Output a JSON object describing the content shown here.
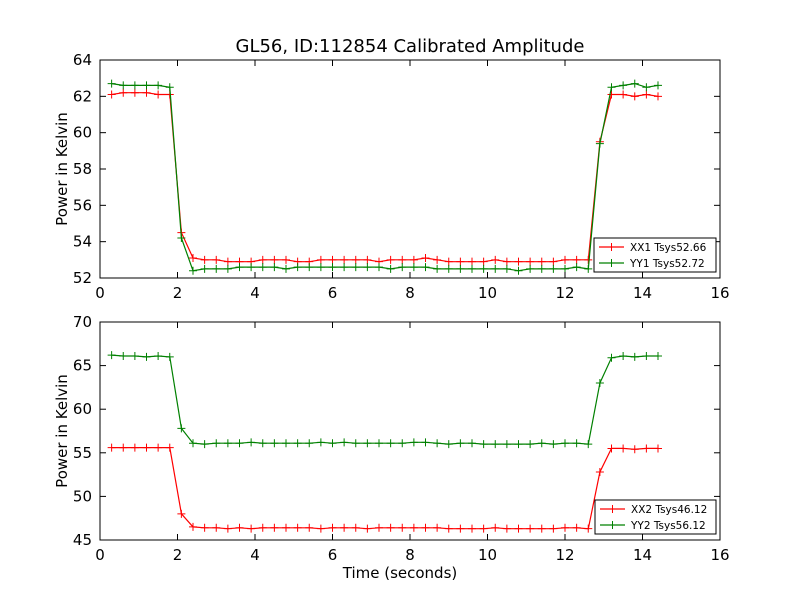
{
  "figure": {
    "title": "GL56, ID:112854 Calibrated Amplitude"
  },
  "chart_data": [
    {
      "type": "line",
      "title": "GL56, ID:112854 Calibrated Amplitude",
      "xlabel": "",
      "ylabel": "Power in Kelvin",
      "xlim": [
        0,
        16
      ],
      "ylim": [
        52,
        64
      ],
      "xticks": [
        "0",
        "2",
        "4",
        "6",
        "8",
        "10",
        "12",
        "14",
        "16"
      ],
      "yticks": [
        "52",
        "54",
        "56",
        "58",
        "60",
        "62",
        "64"
      ],
      "legend_position": "lower-right",
      "grid": false,
      "x": [
        0.3,
        0.6,
        0.9,
        1.2,
        1.5,
        1.8,
        2.1,
        2.4,
        2.7,
        3.0,
        3.3,
        3.6,
        3.9,
        4.2,
        4.5,
        4.8,
        5.1,
        5.4,
        5.7,
        6.0,
        6.3,
        6.6,
        6.9,
        7.2,
        7.5,
        7.8,
        8.1,
        8.4,
        8.7,
        9.0,
        9.3,
        9.6,
        9.9,
        10.2,
        10.5,
        10.8,
        11.1,
        11.4,
        11.7,
        12.0,
        12.3,
        12.6,
        12.9,
        13.2,
        13.5,
        13.8,
        14.1,
        14.4
      ],
      "series": [
        {
          "name": "XX1 Tsys52.66",
          "color": "#ff0000",
          "values": [
            62.1,
            62.2,
            62.2,
            62.2,
            62.1,
            62.1,
            54.5,
            53.1,
            53.0,
            53.0,
            52.9,
            52.9,
            52.9,
            53.0,
            53.0,
            53.0,
            52.9,
            52.9,
            53.0,
            53.0,
            53.0,
            53.0,
            53.0,
            52.9,
            53.0,
            53.0,
            53.0,
            53.1,
            53.0,
            52.9,
            52.9,
            52.9,
            52.9,
            53.0,
            52.9,
            52.9,
            52.9,
            52.9,
            52.9,
            53.0,
            53.0,
            53.0,
            59.5,
            62.1,
            62.1,
            62.0,
            62.1,
            62.0
          ]
        },
        {
          "name": "YY1 Tsys52.72",
          "color": "#008000",
          "values": [
            62.7,
            62.6,
            62.6,
            62.6,
            62.6,
            62.5,
            54.2,
            52.4,
            52.5,
            52.5,
            52.5,
            52.6,
            52.6,
            52.6,
            52.6,
            52.5,
            52.6,
            52.6,
            52.6,
            52.6,
            52.6,
            52.6,
            52.6,
            52.6,
            52.5,
            52.6,
            52.6,
            52.6,
            52.5,
            52.5,
            52.5,
            52.5,
            52.5,
            52.5,
            52.5,
            52.4,
            52.5,
            52.5,
            52.5,
            52.5,
            52.6,
            52.5,
            59.4,
            62.5,
            62.6,
            62.7,
            62.5,
            62.6
          ]
        }
      ]
    },
    {
      "type": "line",
      "title": "",
      "xlabel": "Time (seconds)",
      "ylabel": "Power in Kelvin",
      "xlim": [
        0,
        16
      ],
      "ylim": [
        45,
        70
      ],
      "xticks": [
        "0",
        "2",
        "4",
        "6",
        "8",
        "10",
        "12",
        "14",
        "16"
      ],
      "yticks": [
        "45",
        "50",
        "55",
        "60",
        "65",
        "70"
      ],
      "legend_position": "lower-right",
      "grid": false,
      "x": [
        0.3,
        0.6,
        0.9,
        1.2,
        1.5,
        1.8,
        2.1,
        2.4,
        2.7,
        3.0,
        3.3,
        3.6,
        3.9,
        4.2,
        4.5,
        4.8,
        5.1,
        5.4,
        5.7,
        6.0,
        6.3,
        6.6,
        6.9,
        7.2,
        7.5,
        7.8,
        8.1,
        8.4,
        8.7,
        9.0,
        9.3,
        9.6,
        9.9,
        10.2,
        10.5,
        10.8,
        11.1,
        11.4,
        11.7,
        12.0,
        12.3,
        12.6,
        12.9,
        13.2,
        13.5,
        13.8,
        14.1,
        14.4
      ],
      "series": [
        {
          "name": "XX2 Tsys46.12",
          "color": "#ff0000",
          "values": [
            55.6,
            55.6,
            55.6,
            55.6,
            55.6,
            55.6,
            48.0,
            46.5,
            46.4,
            46.4,
            46.3,
            46.4,
            46.3,
            46.4,
            46.4,
            46.4,
            46.4,
            46.4,
            46.3,
            46.4,
            46.4,
            46.4,
            46.3,
            46.4,
            46.4,
            46.4,
            46.4,
            46.4,
            46.4,
            46.3,
            46.3,
            46.3,
            46.3,
            46.4,
            46.3,
            46.3,
            46.3,
            46.3,
            46.3,
            46.4,
            46.4,
            46.3,
            52.8,
            55.5,
            55.5,
            55.4,
            55.5,
            55.5
          ]
        },
        {
          "name": "YY2 Tsys56.12",
          "color": "#008000",
          "values": [
            66.2,
            66.1,
            66.1,
            66.0,
            66.1,
            66.0,
            57.8,
            56.1,
            56.0,
            56.1,
            56.1,
            56.1,
            56.2,
            56.1,
            56.1,
            56.1,
            56.1,
            56.1,
            56.2,
            56.1,
            56.2,
            56.1,
            56.1,
            56.1,
            56.1,
            56.1,
            56.2,
            56.2,
            56.1,
            56.0,
            56.1,
            56.1,
            56.0,
            56.0,
            56.0,
            56.0,
            56.0,
            56.1,
            56.0,
            56.1,
            56.1,
            56.0,
            63.0,
            65.9,
            66.1,
            66.0,
            66.1,
            66.1
          ]
        }
      ]
    }
  ]
}
